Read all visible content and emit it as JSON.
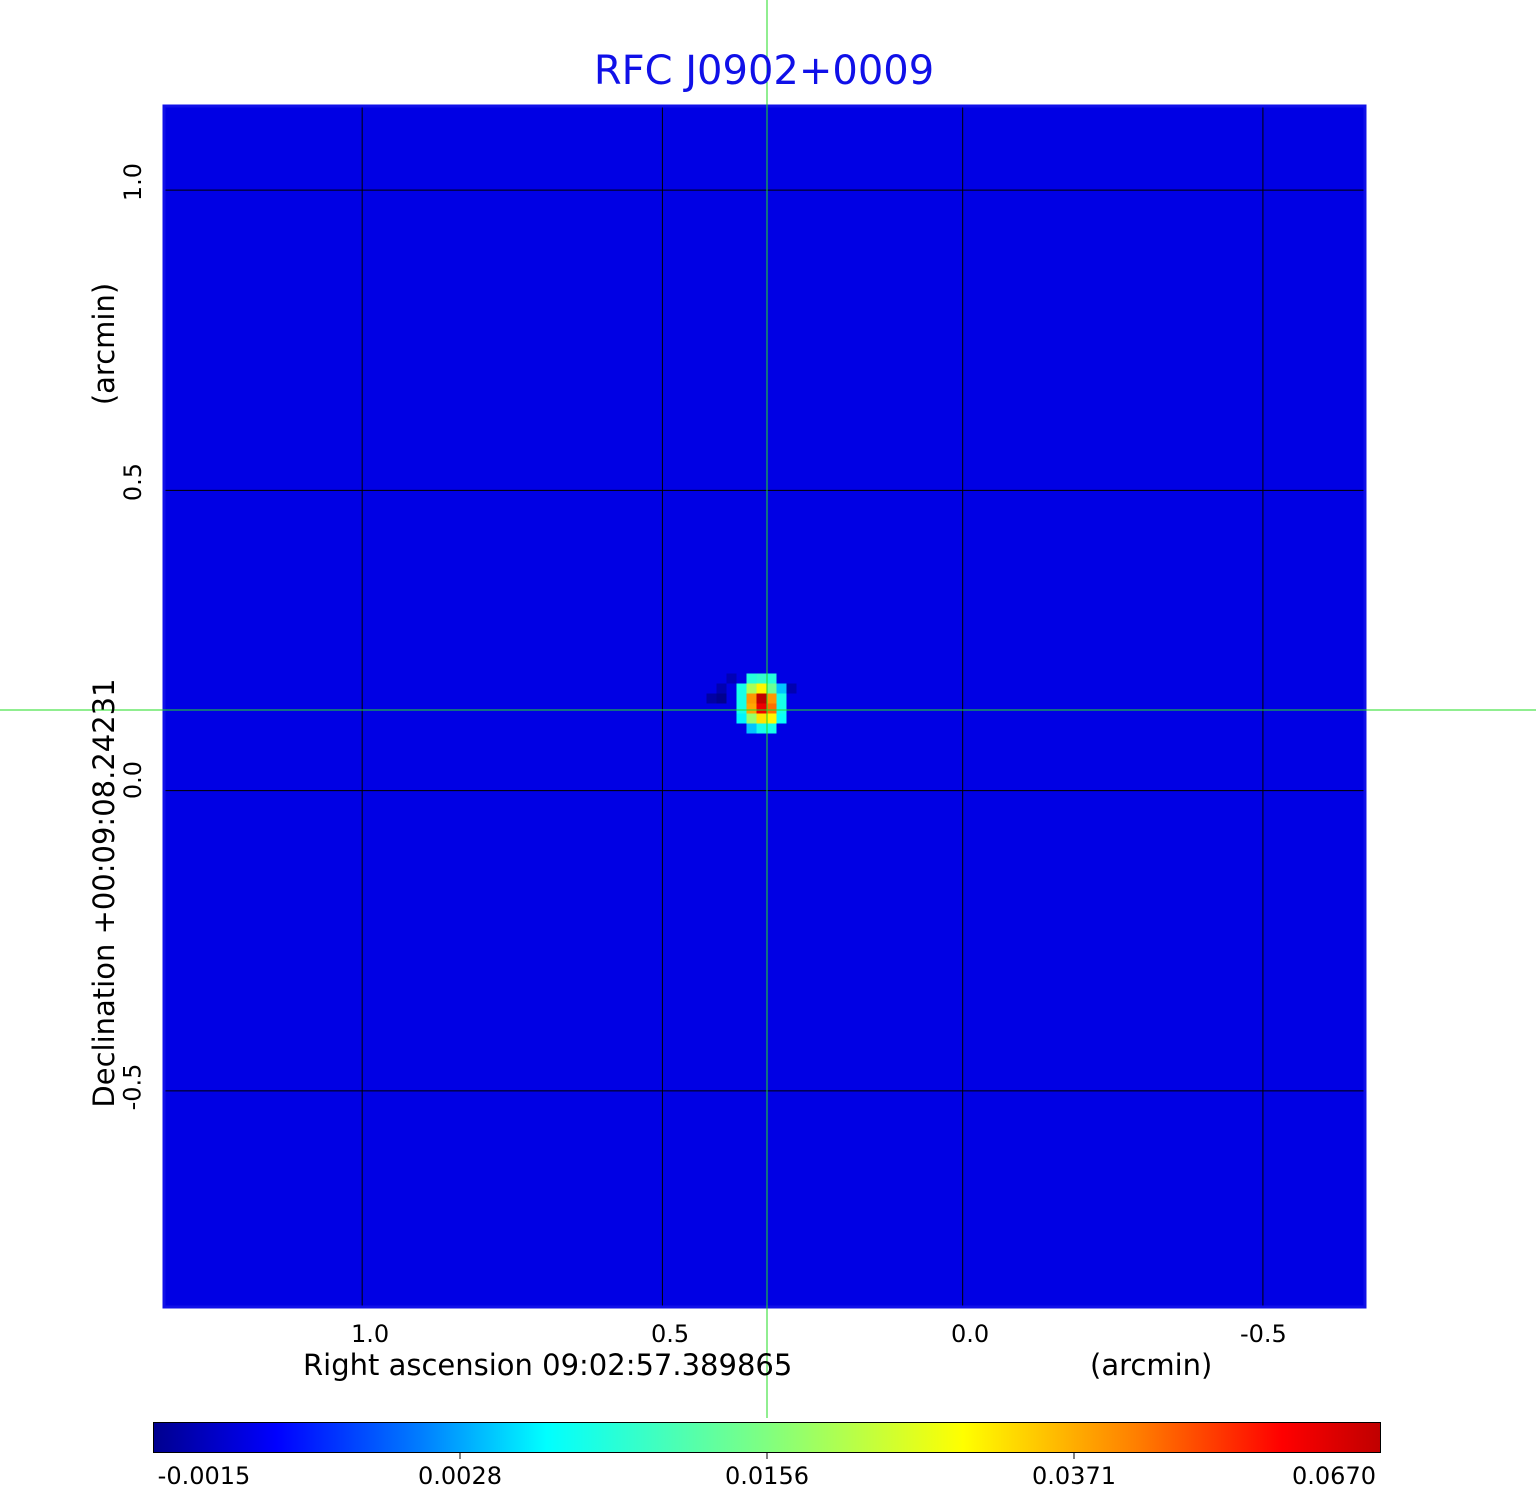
{
  "chart_data": {
    "type": "heatmap",
    "title": "RFC J0902+0009",
    "xlabel": "Right ascension  09:02:57.389865",
    "xunit": "(arcmin)",
    "ylabel": "Declination  +00:09:08.24231",
    "yunit": "(arcmin)",
    "xlim": [
      1.33,
      -0.67
    ],
    "ylim": [
      -0.86,
      1.14
    ],
    "xticks": [
      1.0,
      0.5,
      0.0,
      -0.5
    ],
    "xtick_labels": [
      "1.0",
      "0.5",
      "0.0",
      "-0.5"
    ],
    "yticks": [
      1.0,
      0.5,
      0.0,
      -0.5
    ],
    "ytick_labels": [
      "1.0",
      "0.5",
      "0.0",
      "-0.5"
    ],
    "grid": true,
    "crosshair": {
      "x": 0.34,
      "y": 0.14
    },
    "background_value": -0.0002,
    "source_cells_arcsec": [
      {
        "dx": -1,
        "dy": 3,
        "v": 0.009
      },
      {
        "dx": 0,
        "dy": 3,
        "v": 0.01
      },
      {
        "dx": 1,
        "dy": 3,
        "v": 0.009
      },
      {
        "dx": -2,
        "dy": 2,
        "v": 0.004
      },
      {
        "dx": -1,
        "dy": 2,
        "v": 0.014
      },
      {
        "dx": 0,
        "dy": 2,
        "v": 0.03
      },
      {
        "dx": 1,
        "dy": 2,
        "v": 0.02
      },
      {
        "dx": 2,
        "dy": 2,
        "v": 0.008
      },
      {
        "dx": -2,
        "dy": 1,
        "v": 0.008
      },
      {
        "dx": -1,
        "dy": 1,
        "v": 0.04
      },
      {
        "dx": 0,
        "dy": 1,
        "v": 0.067
      },
      {
        "dx": 1,
        "dy": 1,
        "v": 0.04
      },
      {
        "dx": 2,
        "dy": 1,
        "v": 0.008
      },
      {
        "dx": -2,
        "dy": 0,
        "v": 0.008
      },
      {
        "dx": -1,
        "dy": 0,
        "v": 0.045
      },
      {
        "dx": 0,
        "dy": 0,
        "v": 0.06
      },
      {
        "dx": 1,
        "dy": 0,
        "v": 0.038
      },
      {
        "dx": 2,
        "dy": 0,
        "v": 0.008
      },
      {
        "dx": -2,
        "dy": -1,
        "v": 0.007
      },
      {
        "dx": -1,
        "dy": -1,
        "v": 0.03
      },
      {
        "dx": 0,
        "dy": -1,
        "v": 0.032
      },
      {
        "dx": 1,
        "dy": -1,
        "v": 0.018
      },
      {
        "dx": 2,
        "dy": -1,
        "v": 0.006
      },
      {
        "dx": -1,
        "dy": -2,
        "v": 0.008
      },
      {
        "dx": 0,
        "dy": -2,
        "v": 0.008
      },
      {
        "dx": 1,
        "dy": -2,
        "v": 0.004
      },
      {
        "dx": 4,
        "dy": 1,
        "v": -0.0015
      },
      {
        "dx": 5,
        "dy": 1,
        "v": -0.0012
      },
      {
        "dx": 4,
        "dy": 2,
        "v": -0.001
      },
      {
        "dx": -3,
        "dy": 2,
        "v": -0.001
      },
      {
        "dx": 3,
        "dy": 3,
        "v": -0.0009
      }
    ],
    "colorbar": {
      "colormap": "jet",
      "ticks": [
        -0.0015,
        0.0028,
        0.0156,
        0.0371,
        0.067
      ],
      "tick_labels": [
        "-0.0015",
        "0.0028",
        "0.0156",
        "0.0371",
        "0.0670"
      ]
    },
    "colors": {
      "title": "#1010e8",
      "frame": "#1010e8",
      "crosshair": "#22dd22",
      "grid": "#000000"
    }
  }
}
